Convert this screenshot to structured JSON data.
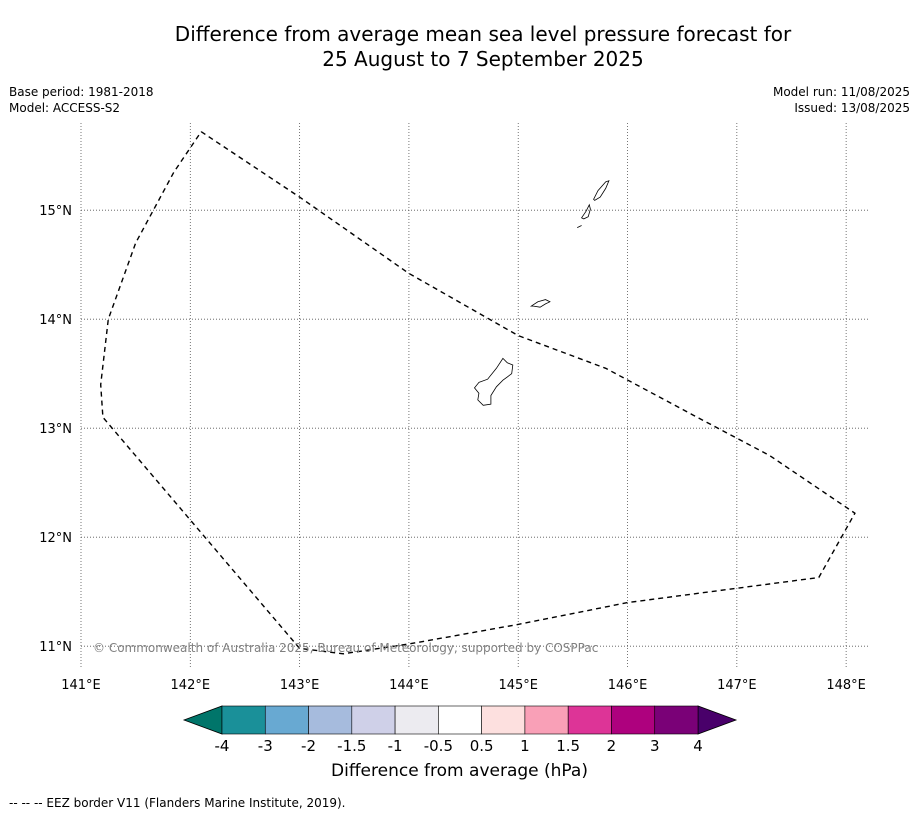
{
  "title_line1": "Difference from average mean sea level pressure forecast for",
  "title_line2": "25 August to 7 September 2025",
  "meta_left": [
    "Base period: 1981-2018",
    "Model: ACCESS-S2"
  ],
  "meta_right": [
    "Model run: 11/08/2025",
    "Issued: 13/08/2025"
  ],
  "map": {
    "lon_range": [
      141,
      148.2
    ],
    "lat_range": [
      10.8,
      15.8
    ],
    "lon_ticks": [
      141,
      142,
      143,
      144,
      145,
      146,
      147,
      148
    ],
    "lon_labels": [
      "141°E",
      "142°E",
      "143°E",
      "144°E",
      "145°E",
      "146°E",
      "147°E",
      "148°E"
    ],
    "lat_ticks": [
      11,
      12,
      13,
      14,
      15
    ],
    "lat_labels": [
      "11°N",
      "12°N",
      "13°N",
      "14°N",
      "15°N"
    ],
    "gridlines": true,
    "eez_border": [
      [
        142.1,
        15.72
      ],
      [
        143.0,
        15.12
      ],
      [
        144.0,
        14.42
      ],
      [
        145.0,
        13.85
      ],
      [
        145.8,
        13.55
      ],
      [
        146.6,
        13.12
      ],
      [
        147.3,
        12.75
      ],
      [
        148.08,
        12.22
      ],
      [
        147.75,
        11.63
      ],
      [
        146.0,
        11.4
      ],
      [
        145.0,
        11.2
      ],
      [
        144.0,
        11.02
      ],
      [
        143.4,
        10.93
      ],
      [
        143.0,
        10.98
      ],
      [
        141.2,
        13.1
      ],
      [
        141.18,
        13.4
      ],
      [
        141.25,
        14.0
      ],
      [
        141.5,
        14.7
      ],
      [
        141.85,
        15.35
      ],
      [
        142.1,
        15.72
      ]
    ],
    "islands": [
      {
        "name": "Guam",
        "coords": [
          [
            144.64,
            13.42
          ],
          [
            144.72,
            13.45
          ],
          [
            144.8,
            13.55
          ],
          [
            144.86,
            13.64
          ],
          [
            144.9,
            13.6
          ],
          [
            144.95,
            13.58
          ],
          [
            144.94,
            13.5
          ],
          [
            144.86,
            13.44
          ],
          [
            144.8,
            13.38
          ],
          [
            144.75,
            13.3
          ],
          [
            144.75,
            13.22
          ],
          [
            144.68,
            13.21
          ],
          [
            144.63,
            13.26
          ],
          [
            144.64,
            13.32
          ],
          [
            144.6,
            13.37
          ],
          [
            144.64,
            13.42
          ]
        ]
      },
      {
        "name": "Rota",
        "coords": [
          [
            145.12,
            14.12
          ],
          [
            145.18,
            14.16
          ],
          [
            145.25,
            14.18
          ],
          [
            145.29,
            14.16
          ],
          [
            145.25,
            14.14
          ],
          [
            145.2,
            14.11
          ],
          [
            145.14,
            14.12
          ],
          [
            145.12,
            14.12
          ]
        ]
      },
      {
        "name": "Tinian",
        "coords": [
          [
            145.58,
            14.93
          ],
          [
            145.62,
            14.99
          ],
          [
            145.65,
            15.05
          ],
          [
            145.66,
            15.01
          ],
          [
            145.64,
            14.94
          ],
          [
            145.6,
            14.92
          ],
          [
            145.58,
            14.93
          ]
        ]
      },
      {
        "name": "Saipan",
        "coords": [
          [
            145.69,
            15.1
          ],
          [
            145.73,
            15.18
          ],
          [
            145.8,
            15.26
          ],
          [
            145.83,
            15.27
          ],
          [
            145.8,
            15.2
          ],
          [
            145.75,
            15.12
          ],
          [
            145.7,
            15.09
          ],
          [
            145.69,
            15.1
          ]
        ]
      },
      {
        "name": "Aguijan",
        "coords": [
          [
            145.54,
            14.84
          ],
          [
            145.58,
            14.86
          ]
        ]
      }
    ]
  },
  "copyright": "© Commonwealth of Australia 2025, Bureau of Meteorology, supported by COSPPac",
  "colorbar": {
    "title": "Difference from average (hPa)",
    "boundaries": [
      "-4",
      "-3",
      "-2",
      "-1.5",
      "-1",
      "-0.5",
      "0.5",
      "1",
      "1.5",
      "2",
      "3",
      "4"
    ],
    "colors": [
      "#1a9099",
      "#68a9d2",
      "#a6bbdd",
      "#cfd0e8",
      "#ecebf0",
      "#ffffff",
      "#fde0df",
      "#f9a0b7",
      "#dd3497",
      "#ae017e",
      "#7a0177"
    ],
    "under_color": "#00756a",
    "over_color": "#49006a"
  },
  "footnote": "-- -- -- EEZ border V11 (Flanders Marine Institute, 2019)."
}
